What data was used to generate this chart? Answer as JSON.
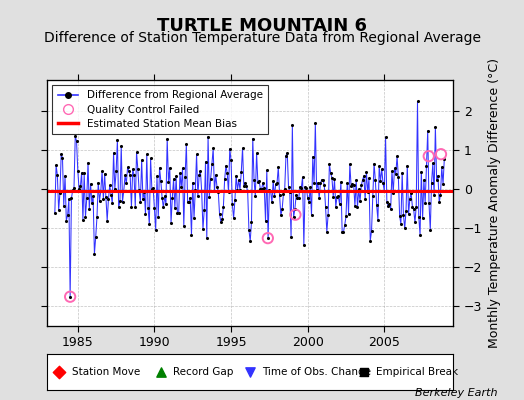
{
  "title": "TURTLE MOUNTAIN 6",
  "subtitle": "Difference of Station Temperature Data from Regional Average",
  "ylabel": "Monthly Temperature Anomaly Difference (°C)",
  "xlim": [
    1983.0,
    2009.5
  ],
  "ylim": [
    -3.5,
    2.8
  ],
  "yticks": [
    -3,
    -2,
    -1,
    0,
    1,
    2
  ],
  "xticks": [
    1985,
    1990,
    1995,
    2000,
    2005
  ],
  "bias_line_y": -0.05,
  "background_color": "#e0e0e0",
  "plot_bg_color": "#ffffff",
  "line_color": "#3333ff",
  "dot_color": "#000000",
  "bias_color": "#ff0000",
  "qc_color": "#ff69b4",
  "title_fontsize": 13,
  "subtitle_fontsize": 10,
  "tick_fontsize": 9,
  "ylabel_fontsize": 9,
  "watermark": "Berkeley Earth",
  "legend1_entries": [
    "Difference from Regional Average",
    "Quality Control Failed",
    "Estimated Station Mean Bias"
  ],
  "legend2_entries": [
    "Station Move",
    "Record Gap",
    "Time of Obs. Change",
    "Empirical Break"
  ]
}
